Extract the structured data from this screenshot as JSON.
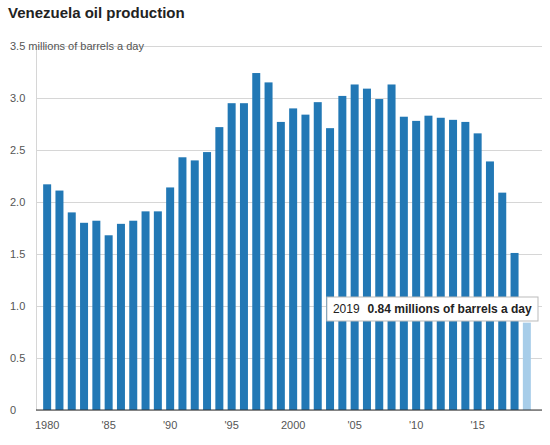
{
  "chart_data": {
    "type": "bar",
    "title": "Venezuela oil production",
    "categories": [
      "1980",
      null,
      null,
      null,
      null,
      "'85",
      null,
      null,
      null,
      null,
      "'90",
      null,
      null,
      null,
      null,
      "'95",
      null,
      null,
      null,
      null,
      "2000",
      null,
      null,
      null,
      null,
      "'05",
      null,
      null,
      null,
      null,
      "'10",
      null,
      null,
      null,
      null,
      "'15",
      null,
      null,
      null,
      null
    ],
    "values": [
      2.17,
      2.11,
      1.9,
      1.8,
      1.82,
      1.68,
      1.79,
      1.82,
      1.91,
      1.91,
      2.14,
      2.43,
      2.4,
      2.48,
      2.72,
      2.95,
      2.95,
      3.24,
      3.15,
      2.77,
      2.9,
      2.84,
      2.96,
      2.71,
      3.02,
      3.13,
      3.09,
      2.99,
      3.13,
      2.82,
      2.78,
      2.83,
      2.81,
      2.79,
      2.77,
      2.66,
      2.39,
      2.09,
      1.51,
      0.84
    ],
    "colors": [
      "#2278b5",
      "#2278b5",
      "#2278b5",
      "#2278b5",
      "#2278b5",
      "#2278b5",
      "#2278b5",
      "#2278b5",
      "#2278b5",
      "#2278b5",
      "#2278b5",
      "#2278b5",
      "#2278b5",
      "#2278b5",
      "#2278b5",
      "#2278b5",
      "#2278b5",
      "#2278b5",
      "#2278b5",
      "#2278b5",
      "#2278b5",
      "#2278b5",
      "#2278b5",
      "#2278b5",
      "#2278b5",
      "#2278b5",
      "#2278b5",
      "#2278b5",
      "#2278b5",
      "#2278b5",
      "#2278b5",
      "#2278b5",
      "#2278b5",
      "#2278b5",
      "#2278b5",
      "#2278b5",
      "#2278b5",
      "#2278b5",
      "#2278b5",
      "#a7cde9"
    ],
    "ylim": [
      0,
      3.5
    ],
    "yticks": [
      0,
      0.5,
      {
        "value": 1,
        "label": "1.0"
      },
      1.5,
      {
        "value": 2,
        "label": "2.0"
      },
      2.5,
      {
        "value": 3,
        "label": "3.0"
      },
      {
        "value": 3.5,
        "label": "3.5 millions of barrels a day"
      }
    ],
    "grid": true,
    "annotation": {
      "label": "2019",
      "text": "0.84 millions of barrels a day"
    }
  }
}
